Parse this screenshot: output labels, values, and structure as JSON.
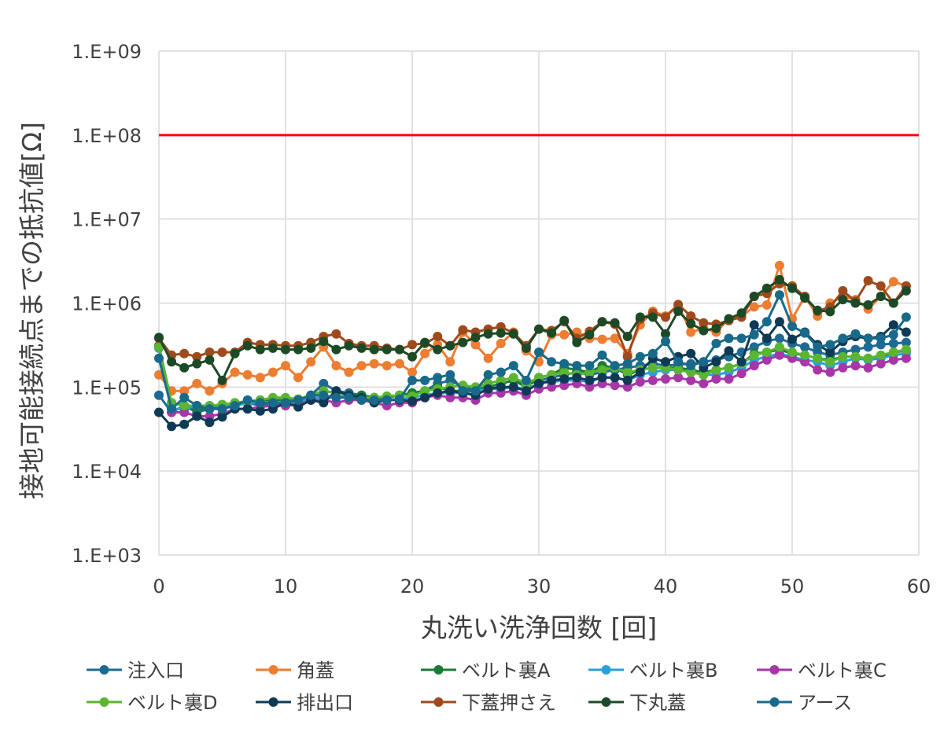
{
  "chart_data": {
    "type": "line",
    "title": "",
    "xlabel": "丸洗い洗浄回数 [回]",
    "ylabel": "接地可能接続点までの抵抗値[Ω]",
    "xlim": [
      0,
      60
    ],
    "ylim": [
      1000,
      1000000000
    ],
    "y_scale": "log",
    "x_ticks": [
      "0",
      "10",
      "20",
      "30",
      "40",
      "50",
      "60"
    ],
    "y_ticks": [
      "1.E+03",
      "1.E+04",
      "1.E+05",
      "1.E+06",
      "1.E+07",
      "1.E+08",
      "1.E+09"
    ],
    "grid": true,
    "legend": "bottom",
    "reference_line": {
      "y": 100000000,
      "color": "#ff0000"
    },
    "x": [
      0,
      1,
      2,
      3,
      4,
      5,
      6,
      7,
      8,
      9,
      10,
      11,
      12,
      13,
      14,
      15,
      16,
      17,
      18,
      19,
      20,
      21,
      22,
      23,
      24,
      25,
      26,
      27,
      28,
      29,
      30,
      31,
      32,
      33,
      34,
      35,
      36,
      37,
      38,
      39,
      40,
      41,
      42,
      43,
      44,
      45,
      46,
      47,
      48,
      49,
      50,
      51,
      52,
      53,
      54,
      55,
      56,
      57,
      58,
      59
    ],
    "series": [
      {
        "name": "注入口",
        "color": "#1f6a94",
        "values": [
          80000,
          50000,
          60000,
          50000,
          55000,
          55000,
          60000,
          65000,
          60000,
          65000,
          60000,
          65000,
          80000,
          110000,
          90000,
          85000,
          80000,
          75000,
          75000,
          80000,
          85000,
          90000,
          110000,
          120000,
          100000,
          95000,
          100000,
          110000,
          120000,
          105000,
          120000,
          130000,
          140000,
          150000,
          140000,
          150000,
          160000,
          170000,
          180000,
          190000,
          180000,
          185000,
          190000,
          200000,
          210000,
          230000,
          260000,
          300000,
          350000,
          380000,
          330000,
          300000,
          260000,
          240000,
          260000,
          280000,
          300000,
          320000,
          330000,
          340000
        ]
      },
      {
        "name": "角蓋",
        "color": "#ed7d31",
        "values": [
          140000,
          90000,
          90000,
          110000,
          90000,
          110000,
          150000,
          140000,
          130000,
          150000,
          180000,
          130000,
          200000,
          300000,
          180000,
          150000,
          180000,
          190000,
          180000,
          190000,
          150000,
          250000,
          320000,
          200000,
          450000,
          320000,
          220000,
          330000,
          450000,
          270000,
          200000,
          420000,
          420000,
          450000,
          380000,
          370000,
          380000,
          250000,
          550000,
          800000,
          700000,
          950000,
          450000,
          500000,
          450000,
          650000,
          700000,
          900000,
          950000,
          2800000,
          650000,
          1200000,
          700000,
          1000000,
          1200000,
          1100000,
          850000,
          1200000,
          1800000,
          1600000
        ]
      },
      {
        "name": "ベルト裏A",
        "color": "#1b7b35",
        "values": [
          310000,
          65000,
          60000,
          55000,
          55000,
          60000,
          60000,
          65000,
          70000,
          70000,
          70000,
          70000,
          80000,
          90000,
          85000,
          80000,
          80000,
          75000,
          75000,
          80000,
          85000,
          90000,
          100000,
          90000,
          90000,
          95000,
          100000,
          110000,
          120000,
          100000,
          130000,
          140000,
          170000,
          160000,
          150000,
          180000,
          170000,
          140000,
          160000,
          170000,
          170000,
          170000,
          160000,
          150000,
          160000,
          170000,
          190000,
          250000,
          260000,
          280000,
          250000,
          240000,
          220000,
          210000,
          230000,
          230000,
          220000,
          230000,
          260000,
          270000
        ]
      },
      {
        "name": "ベルト裏B",
        "color": "#2aa0d8",
        "values": [
          290000,
          55000,
          55000,
          60000,
          60000,
          60000,
          60000,
          65000,
          65000,
          65000,
          65000,
          65000,
          75000,
          75000,
          75000,
          80000,
          75000,
          70000,
          70000,
          72000,
          75000,
          80000,
          85000,
          85000,
          85000,
          90000,
          95000,
          95000,
          100000,
          95000,
          110000,
          115000,
          120000,
          120000,
          115000,
          130000,
          130000,
          120000,
          140000,
          150000,
          160000,
          160000,
          150000,
          140000,
          140000,
          150000,
          170000,
          210000,
          230000,
          250000,
          230000,
          210000,
          200000,
          180000,
          200000,
          220000,
          210000,
          220000,
          240000,
          250000
        ]
      },
      {
        "name": "ベルト裏C",
        "color": "#a736a8",
        "values": [
          300000,
          50000,
          50000,
          45000,
          45000,
          48000,
          55000,
          55000,
          58000,
          60000,
          60000,
          62000,
          70000,
          70000,
          65000,
          70000,
          70000,
          65000,
          60000,
          65000,
          65000,
          75000,
          80000,
          75000,
          75000,
          70000,
          85000,
          85000,
          90000,
          80000,
          95000,
          100000,
          105000,
          110000,
          100000,
          110000,
          105000,
          100000,
          115000,
          120000,
          125000,
          130000,
          120000,
          110000,
          125000,
          125000,
          145000,
          180000,
          210000,
          240000,
          220000,
          200000,
          160000,
          150000,
          170000,
          180000,
          170000,
          190000,
          210000,
          220000
        ]
      },
      {
        "name": "ベルト裏D",
        "color": "#5cb531",
        "values": [
          300000,
          65000,
          60000,
          60000,
          60000,
          62000,
          65000,
          68000,
          70000,
          75000,
          75000,
          72000,
          80000,
          90000,
          85000,
          80000,
          75000,
          75000,
          78000,
          80000,
          78000,
          90000,
          95000,
          100000,
          105000,
          100000,
          110000,
          120000,
          130000,
          110000,
          130000,
          140000,
          150000,
          140000,
          150000,
          160000,
          170000,
          150000,
          160000,
          170000,
          170000,
          160000,
          150000,
          140000,
          160000,
          170000,
          190000,
          240000,
          260000,
          300000,
          260000,
          240000,
          220000,
          200000,
          230000,
          230000,
          220000,
          240000,
          260000,
          280000
        ]
      },
      {
        "name": "排出口",
        "color": "#0f3a55",
        "values": [
          50000,
          34000,
          36000,
          45000,
          38000,
          44000,
          55000,
          55000,
          52000,
          55000,
          65000,
          58000,
          70000,
          65000,
          90000,
          80000,
          75000,
          65000,
          70000,
          70000,
          68000,
          75000,
          85000,
          90000,
          85000,
          80000,
          95000,
          100000,
          100000,
          90000,
          110000,
          120000,
          125000,
          130000,
          120000,
          130000,
          130000,
          120000,
          150000,
          220000,
          200000,
          230000,
          250000,
          170000,
          200000,
          270000,
          200000,
          550000,
          380000,
          600000,
          370000,
          450000,
          320000,
          260000,
          350000,
          400000,
          380000,
          400000,
          550000,
          450000
        ]
      },
      {
        "name": "下蓋押さえ",
        "color": "#9e4a1c",
        "values": [
          380000,
          240000,
          250000,
          230000,
          260000,
          260000,
          260000,
          340000,
          320000,
          320000,
          310000,
          310000,
          340000,
          400000,
          430000,
          330000,
          310000,
          310000,
          290000,
          280000,
          320000,
          330000,
          400000,
          310000,
          480000,
          450000,
          490000,
          520000,
          440000,
          310000,
          490000,
          470000,
          600000,
          380000,
          460000,
          600000,
          560000,
          230000,
          640000,
          760000,
          680000,
          960000,
          700000,
          580000,
          560000,
          620000,
          680000,
          1200000,
          1300000,
          1700000,
          1600000,
          1200000,
          800000,
          900000,
          1400000,
          1050000,
          1850000,
          1600000,
          1000000,
          1600000
        ]
      },
      {
        "name": "下丸蓋",
        "color": "#1d4a26",
        "values": [
          390000,
          200000,
          170000,
          190000,
          210000,
          120000,
          250000,
          310000,
          280000,
          290000,
          280000,
          280000,
          290000,
          350000,
          280000,
          310000,
          290000,
          280000,
          280000,
          280000,
          230000,
          340000,
          280000,
          310000,
          340000,
          390000,
          430000,
          440000,
          430000,
          290000,
          490000,
          440000,
          620000,
          340000,
          420000,
          600000,
          580000,
          400000,
          680000,
          680000,
          430000,
          800000,
          570000,
          470000,
          500000,
          650000,
          760000,
          1200000,
          1500000,
          1900000,
          1500000,
          1150000,
          820000,
          790000,
          1100000,
          1000000,
          950000,
          1200000,
          1000000,
          1400000
        ]
      },
      {
        "name": "アース",
        "color": "#196a8a",
        "values": [
          220000,
          55000,
          75000,
          60000,
          55000,
          55000,
          60000,
          70000,
          65000,
          65000,
          65000,
          70000,
          80000,
          80000,
          75000,
          75000,
          70000,
          70000,
          70000,
          72000,
          120000,
          120000,
          130000,
          140000,
          90000,
          90000,
          140000,
          150000,
          180000,
          120000,
          260000,
          200000,
          190000,
          180000,
          180000,
          240000,
          180000,
          190000,
          230000,
          250000,
          350000,
          200000,
          180000,
          200000,
          330000,
          380000,
          380000,
          420000,
          600000,
          1250000,
          530000,
          440000,
          300000,
          320000,
          380000,
          430000,
          380000,
          380000,
          420000,
          680000
        ]
      }
    ]
  }
}
